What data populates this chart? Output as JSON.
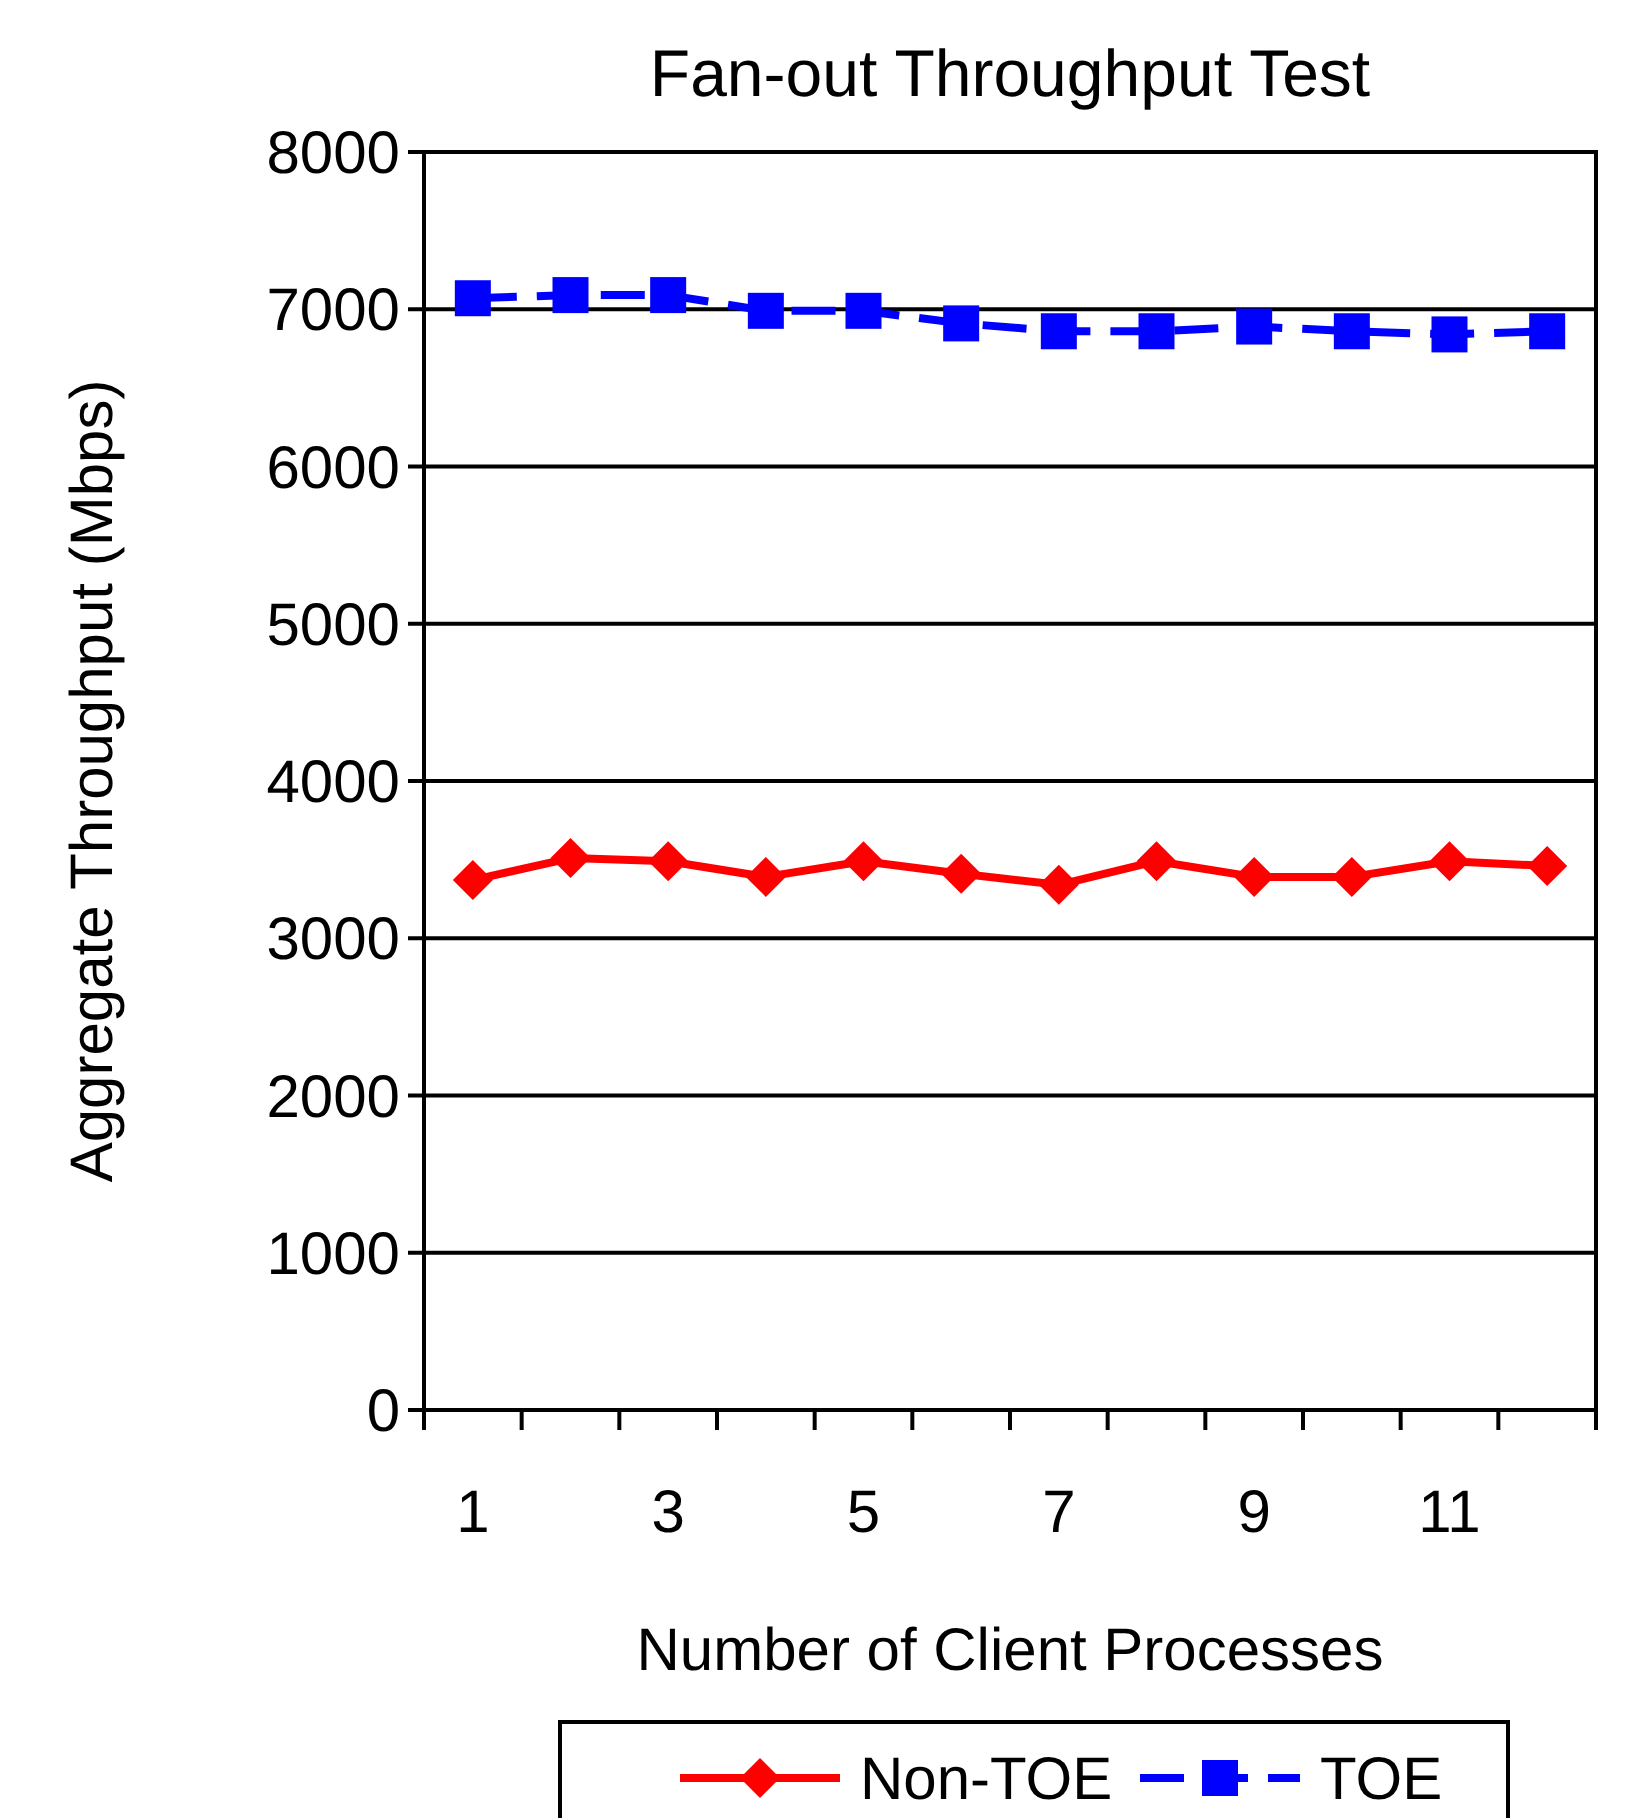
{
  "chart_data": {
    "type": "line",
    "title": "Fan-out Throughput Test",
    "xlabel": "Number of Client Processes",
    "ylabel": "Aggregate Throughput (Mbps)",
    "categories": [
      "1",
      null,
      "3",
      null,
      "5",
      null,
      "7",
      null,
      "9",
      null,
      "11",
      null
    ],
    "series": [
      {
        "name": "Non-TOE",
        "color": "#ff0000",
        "marker": "diamond",
        "line_style": "solid",
        "values": [
          3370,
          3510,
          3490,
          3390,
          3490,
          3410,
          3340,
          3490,
          3390,
          3390,
          3490,
          3460
        ]
      },
      {
        "name": "TOE",
        "color": "#0000ff",
        "marker": "square",
        "line_style": "dashed",
        "values": [
          7070,
          7090,
          7090,
          6990,
          6990,
          6910,
          6860,
          6860,
          6890,
          6860,
          6840,
          6860
        ]
      }
    ],
    "ylim": [
      0,
      8000
    ],
    "yticks": [
      0,
      1000,
      2000,
      3000,
      4000,
      5000,
      6000,
      7000,
      8000
    ],
    "grid": "y",
    "legend": "bottom"
  }
}
